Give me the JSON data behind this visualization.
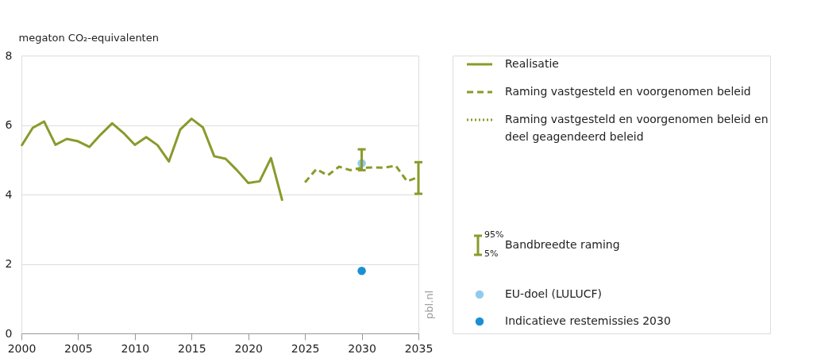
{
  "chart_data": {
    "type": "line",
    "ylabel": "megaton CO₂-equivalenten",
    "xlim": [
      2000,
      2035
    ],
    "xticks": [
      2000,
      2005,
      2010,
      2015,
      2020,
      2025,
      2030,
      2035
    ],
    "ylim": [
      0,
      8
    ],
    "yticks": [
      0,
      2,
      4,
      6,
      8
    ],
    "grid": "y",
    "legend": "right",
    "series": [
      {
        "name": "Realisatie",
        "line_style": "solid",
        "color": "#8a9a2b",
        "x": [
          2000,
          2001,
          2002,
          2003,
          2004,
          2005,
          2006,
          2007,
          2008,
          2009,
          2010,
          2011,
          2012,
          2013,
          2014,
          2015,
          2016,
          2017,
          2018,
          2019,
          2020,
          2021,
          2022,
          2023
        ],
        "values": [
          5.4,
          5.92,
          6.1,
          5.43,
          5.6,
          5.53,
          5.37,
          5.73,
          6.05,
          5.77,
          5.43,
          5.65,
          5.42,
          4.95,
          5.87,
          6.18,
          5.93,
          5.1,
          5.03,
          4.7,
          4.33,
          4.38,
          5.05,
          3.82
        ]
      },
      {
        "name": "Raming vastgesteld en voorgenomen beleid",
        "line_style": "dashed",
        "color": "#8a9a2b",
        "x": [
          2025,
          2026,
          2027,
          2028,
          2029,
          2030,
          2031,
          2032,
          2033,
          2034,
          2035
        ],
        "values": [
          4.35,
          4.73,
          4.55,
          4.8,
          4.7,
          4.77,
          4.78,
          4.77,
          4.83,
          4.38,
          4.5
        ],
        "errors": [
          null,
          null,
          null,
          null,
          null,
          [
            4.7,
            5.3
          ],
          null,
          null,
          null,
          null,
          [
            4.02,
            4.93
          ]
        ]
      },
      {
        "name": "Raming vastgesteld en voorgenomen beleid en deel geagendeerd beleid",
        "line_style": "dotted",
        "color": "#8a9a2b"
      },
      {
        "name": "EU-doel (LULUCF)",
        "type": "scatter",
        "marker": "circle",
        "color": "#90cbee",
        "x": [
          2030
        ],
        "values": [
          4.9
        ]
      },
      {
        "name": "Indicatieve restemissies 2030",
        "type": "scatter",
        "marker": "circle",
        "color": "#1a90d4",
        "x": [
          2030
        ],
        "values": [
          1.8
        ]
      }
    ],
    "annotations": [
      "Bandbreedte raming",
      "95%",
      "5%",
      "pbl.nl"
    ]
  }
}
